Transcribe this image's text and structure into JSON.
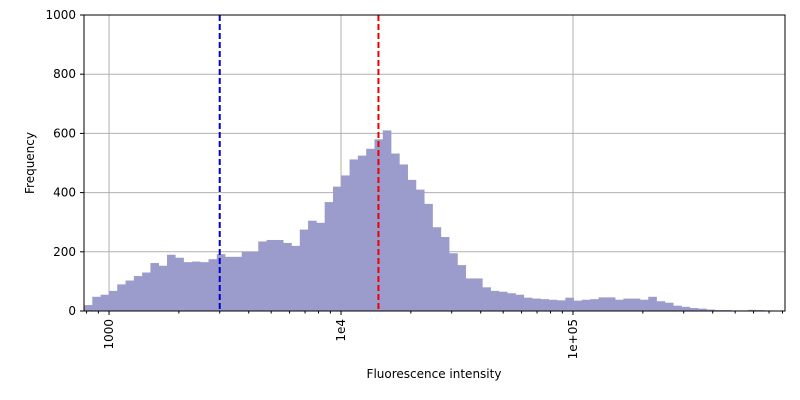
{
  "chart_data": {
    "type": "bar",
    "subtype": "histogram",
    "title": "",
    "xlabel": "Fluorescence intensity",
    "ylabel": "Frequency",
    "x_scale": "log",
    "xlim": [
      780,
      820000
    ],
    "ylim": [
      0,
      1000
    ],
    "grid": true,
    "bar_color": "#9b9bcc",
    "x_ticks": [
      {
        "value": 1000,
        "label": "1000"
      },
      {
        "value": 10000,
        "label": "1e4"
      },
      {
        "value": 100000,
        "label": "1e+05"
      }
    ],
    "y_ticks": [
      {
        "value": 0,
        "label": "0"
      },
      {
        "value": 200,
        "label": "200"
      },
      {
        "value": 400,
        "label": "400"
      },
      {
        "value": 600,
        "label": "600"
      },
      {
        "value": 800,
        "label": "800"
      },
      {
        "value": 1000,
        "label": "1000"
      }
    ],
    "bins": {
      "edges": [
        780,
        847,
        920,
        999,
        1085,
        1178,
        1279,
        1389,
        1508,
        1637,
        1778,
        1930,
        2096,
        2276,
        2471,
        2684,
        2914,
        3164,
        3436,
        3731,
        4051,
        4399,
        4777,
        5187,
        5632,
        6116,
        6641,
        7211,
        7830,
        8502,
        9232,
        10025,
        10886,
        11820,
        12835,
        13937,
        15134,
        16433,
        17844,
        19376,
        21039,
        22845,
        24806,
        26936,
        29248,
        31759,
        34486,
        37446,
        40661,
        44151,
        47942,
        52058,
        56527,
        61380,
        66649,
        72371,
        78584,
        85330,
        92656,
        100610,
        109247,
        118626,
        128810,
        139868,
        151875,
        164914,
        179072,
        194444,
        211137,
        229263,
        248945,
        270317,
        293523,
        318722,
        346083,
        375794,
        408056,
        443087,
        481125,
        522429,
        567279,
        615979,
        668860,
        726280,
        788629,
        820000
      ],
      "counts": [
        20,
        48,
        55,
        68,
        90,
        103,
        118,
        130,
        162,
        153,
        190,
        180,
        165,
        167,
        165,
        175,
        192,
        183,
        183,
        200,
        200,
        235,
        240,
        240,
        230,
        220,
        275,
        305,
        298,
        368,
        420,
        458,
        512,
        525,
        548,
        580,
        610,
        532,
        495,
        443,
        410,
        362,
        283,
        250,
        195,
        155,
        110,
        110,
        80,
        68,
        65,
        60,
        55,
        45,
        42,
        40,
        38,
        36,
        45,
        35,
        38,
        40,
        46,
        46,
        38,
        42,
        42,
        38,
        48,
        33,
        28,
        18,
        14,
        10,
        8,
        5,
        3,
        3,
        2,
        2,
        4,
        3,
        2,
        1,
        1
      ]
    },
    "reference_lines": [
      {
        "value": 3000,
        "color": "#0000cc",
        "style": "dashed"
      },
      {
        "value": 14500,
        "color": "#ee0000",
        "style": "dashed"
      }
    ]
  }
}
